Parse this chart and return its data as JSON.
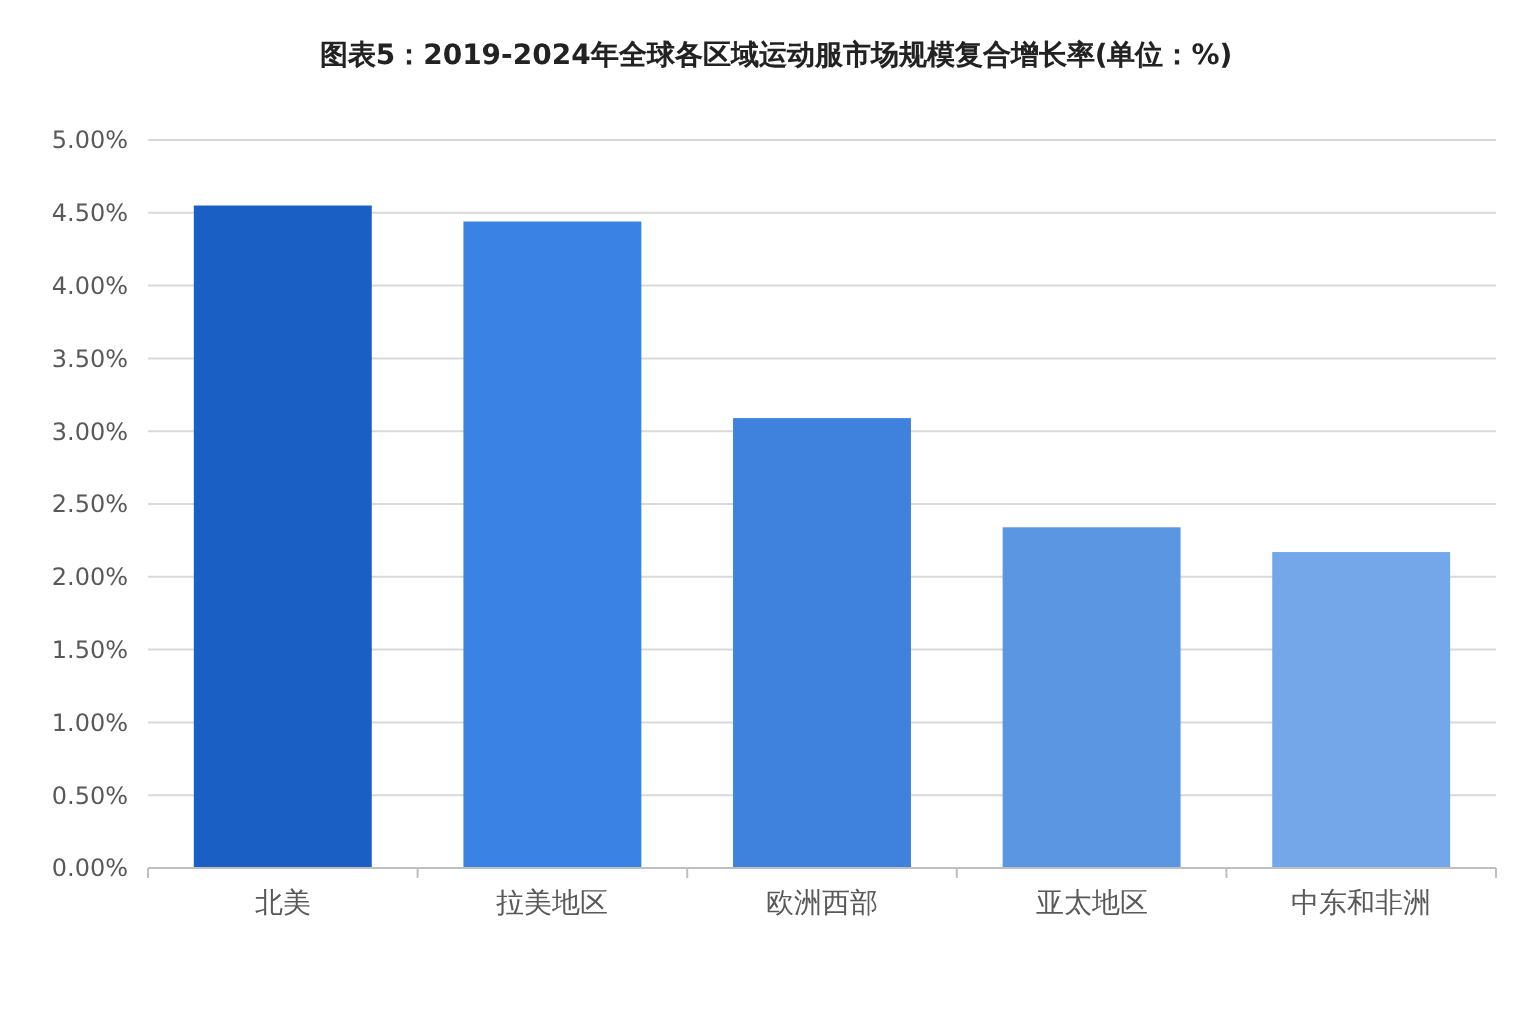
{
  "chart_data": {
    "type": "bar",
    "title": "图表5：2019-2024年全球各区域运动服市场规模复合增长率(单位：%)",
    "categories": [
      "北美",
      "拉美地区",
      "欧洲西部",
      "亚太地区",
      "中东和非洲"
    ],
    "values": [
      4.55,
      4.44,
      3.09,
      2.34,
      2.17
    ],
    "colors": [
      "#1a5fc4",
      "#3a82e4",
      "#3f82de",
      "#5b96e3",
      "#73a7e9"
    ],
    "ylim": [
      0,
      5
    ],
    "yticks": [
      {
        "value": 0,
        "label": "0.00%"
      },
      {
        "value": 0.5,
        "label": "0.50%"
      },
      {
        "value": 1,
        "label": "1.00%"
      },
      {
        "value": 1.5,
        "label": "1.50%"
      },
      {
        "value": 2,
        "label": "2.00%"
      },
      {
        "value": 2.5,
        "label": "2.50%"
      },
      {
        "value": 3,
        "label": "3.00%"
      },
      {
        "value": 3.5,
        "label": "3.50%"
      },
      {
        "value": 4,
        "label": "4.00%"
      },
      {
        "value": 4.5,
        "label": "4.50%"
      },
      {
        "value": 5,
        "label": "5.00%"
      }
    ],
    "grid": "y"
  }
}
